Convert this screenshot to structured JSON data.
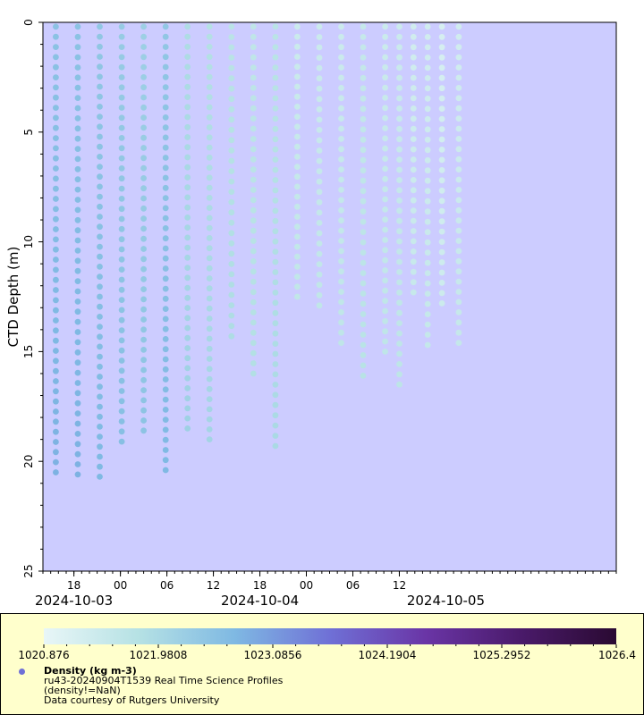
{
  "chart_data": {
    "type": "scatter",
    "ylabel": "CTD Depth (m)",
    "y_ticks": [
      "0",
      "5",
      "10",
      "15",
      "20",
      "25"
    ],
    "ylim": [
      0,
      25
    ],
    "y_inverted": true,
    "x_range": [
      "2024-10-02T14:00",
      "2024-10-05T16:00"
    ],
    "x_hour_ticks": [
      {
        "label": "18",
        "t": "2024-10-02T18:00"
      },
      {
        "label": "00",
        "t": "2024-10-03T00:00"
      },
      {
        "label": "06",
        "t": "2024-10-03T06:00"
      },
      {
        "label": "12",
        "t": "2024-10-03T12:00"
      },
      {
        "label": "18",
        "t": "2024-10-03T18:00"
      },
      {
        "label": "00",
        "t": "2024-10-04T00:00"
      },
      {
        "label": "06",
        "t": "2024-10-04T06:00"
      },
      {
        "label": "12",
        "t": "2024-10-04T12:00"
      }
    ],
    "x_date_labels": [
      {
        "label": "2024-10-03",
        "t": "2024-10-02T18:00"
      },
      {
        "label": "2024-10-04",
        "t": "2024-10-03T18:00"
      },
      {
        "label": "2024-10-05",
        "t": "2024-10-04T18:00"
      }
    ],
    "profiles": [
      {
        "t": "2024-10-02T15:40",
        "max_depth": 20.5,
        "density": 1022.5
      },
      {
        "t": "2024-10-02T18:30",
        "max_depth": 20.6,
        "density": 1022.5
      },
      {
        "t": "2024-10-02T21:20",
        "max_depth": 20.7,
        "density": 1022.4
      },
      {
        "t": "2024-10-03T00:10",
        "max_depth": 19.1,
        "density": 1022.3
      },
      {
        "t": "2024-10-03T03:00",
        "max_depth": 18.6,
        "density": 1022.2
      },
      {
        "t": "2024-10-03T05:50",
        "max_depth": 20.4,
        "density": 1022.4
      },
      {
        "t": "2024-10-03T08:40",
        "max_depth": 18.5,
        "density": 1021.9
      },
      {
        "t": "2024-10-03T11:30",
        "max_depth": 19.0,
        "density": 1021.8
      },
      {
        "t": "2024-10-03T14:20",
        "max_depth": 14.3,
        "density": 1021.7
      },
      {
        "t": "2024-10-03T17:10",
        "max_depth": 16.0,
        "density": 1021.6
      },
      {
        "t": "2024-10-03T20:00",
        "max_depth": 19.3,
        "density": 1021.7
      },
      {
        "t": "2024-10-03T22:50",
        "max_depth": 12.5,
        "density": 1021.4
      },
      {
        "t": "2024-10-04T01:40",
        "max_depth": 12.9,
        "density": 1021.4
      },
      {
        "t": "2024-10-04T04:30",
        "max_depth": 14.6,
        "density": 1021.4
      },
      {
        "t": "2024-10-04T07:20",
        "max_depth": 16.1,
        "density": 1021.5
      },
      {
        "t": "2024-10-04T10:10",
        "max_depth": 15.0,
        "density": 1021.4
      },
      {
        "t": "2024-10-04T12:00",
        "max_depth": 16.5,
        "density": 1021.4
      },
      {
        "t": "2024-10-04T13:50",
        "max_depth": 12.3,
        "density": 1021.3
      },
      {
        "t": "2024-10-04T15:40",
        "max_depth": 14.7,
        "density": 1021.3
      },
      {
        "t": "2024-10-04T17:30",
        "max_depth": 12.8,
        "density": 1021.2
      },
      {
        "t": "2024-10-04T19:40",
        "max_depth": 14.6,
        "density": 1021.3
      }
    ],
    "colorbar": {
      "min": 1020.876,
      "max": 1026.4,
      "tick_labels": [
        "1020.876",
        "1021.9808",
        "1023.0856",
        "1024.1904",
        "1025.2952",
        "1026.4"
      ],
      "colors": [
        "#e8f6f7",
        "#b5e1e4",
        "#7fb9e3",
        "#6f70d6",
        "#6a35a6",
        "#4a1a6a",
        "#2a0a32"
      ]
    },
    "plot_background": "#ccccff"
  },
  "legend": {
    "variable": "Density (kg m-3)",
    "dataset": "ru43-20240904T1539 Real Time Science Profiles",
    "constraint": "(density!=NaN)",
    "credit": "Data courtesy of Rutgers University",
    "marker_color": "#6f70d6"
  }
}
